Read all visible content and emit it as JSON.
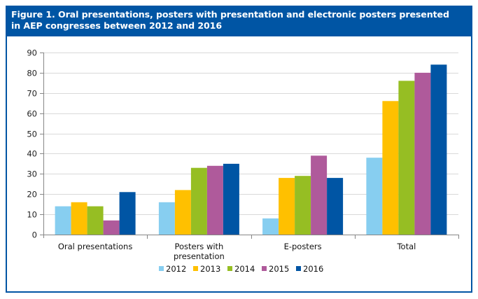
{
  "figure": {
    "title_line1": "Figure 1. Oral presentations, posters with presentation and electronic posters presented",
    "title_line2": "in AEP congresses between 2012 and 2016",
    "header_color": "#0055A4"
  },
  "chart_data": {
    "type": "bar",
    "title": "Figure 1. Oral presentations, posters with presentation and electronic posters presented in AEP congresses between 2012 and 2016",
    "xlabel": "",
    "ylabel": "",
    "categories": [
      [
        "Oral presentations"
      ],
      [
        "Posters with",
        "presentation"
      ],
      [
        "E-posters"
      ],
      [
        "Total"
      ]
    ],
    "series": [
      {
        "name": "2012",
        "color": "#87CEF0",
        "values": [
          14,
          16,
          8,
          38
        ]
      },
      {
        "name": "2013",
        "color": "#FFC000",
        "values": [
          16,
          22,
          28,
          66
        ]
      },
      {
        "name": "2014",
        "color": "#96BE23",
        "values": [
          14,
          33,
          29,
          76
        ]
      },
      {
        "name": "2015",
        "color": "#AF5A9B",
        "values": [
          7,
          34,
          39,
          80
        ]
      },
      {
        "name": "2016",
        "color": "#0055A4",
        "values": [
          21,
          35,
          28,
          84
        ]
      }
    ],
    "ylim": [
      0,
      90
    ],
    "yticks": [
      0,
      10,
      20,
      30,
      40,
      50,
      60,
      70,
      80,
      90
    ],
    "grid": true,
    "legend_position": "bottom-center"
  }
}
